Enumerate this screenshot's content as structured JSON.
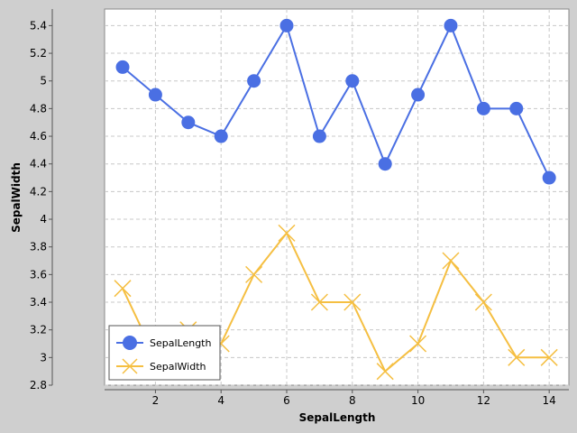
{
  "chart_data": {
    "type": "line",
    "xlabel": "SepalLength",
    "ylabel": "SepalWidth",
    "x": [
      1,
      2,
      3,
      4,
      5,
      6,
      7,
      8,
      9,
      10,
      11,
      12,
      13,
      14
    ],
    "xticks": [
      2,
      4,
      6,
      8,
      10,
      12,
      14
    ],
    "xlim": [
      0.45,
      14.6
    ],
    "ylim": [
      2.8,
      5.52
    ],
    "yticks": [
      2.8,
      3,
      3.2,
      3.4,
      3.6,
      3.8,
      4,
      4.2,
      4.4,
      4.6,
      4.8,
      5,
      5.2,
      5.4
    ],
    "ytick_labels": [
      "2.8",
      "3",
      "3.2",
      "3.4",
      "3.6",
      "3.8",
      "4",
      "4.2",
      "4.4",
      "4.6",
      "4.8",
      "5",
      "5.2",
      "5.4"
    ],
    "grid": true,
    "legend_position": "bottom-left",
    "series": [
      {
        "name": "SepalLength",
        "marker": "circle",
        "color": "#4a6fe3",
        "values": [
          5.1,
          4.9,
          4.7,
          4.6,
          5.0,
          5.4,
          4.6,
          5.0,
          4.4,
          4.9,
          5.4,
          4.8,
          4.8,
          4.3
        ]
      },
      {
        "name": "SepalWidth",
        "marker": "x",
        "color": "#f5bf42",
        "values": [
          3.5,
          3.0,
          3.2,
          3.1,
          3.6,
          3.9,
          3.4,
          3.4,
          2.9,
          3.1,
          3.7,
          3.4,
          3.0,
          3.0
        ]
      }
    ]
  },
  "colors": {
    "background": "#cfcfcf",
    "plot_background": "#ffffff",
    "grid": "#c8c8c8"
  }
}
